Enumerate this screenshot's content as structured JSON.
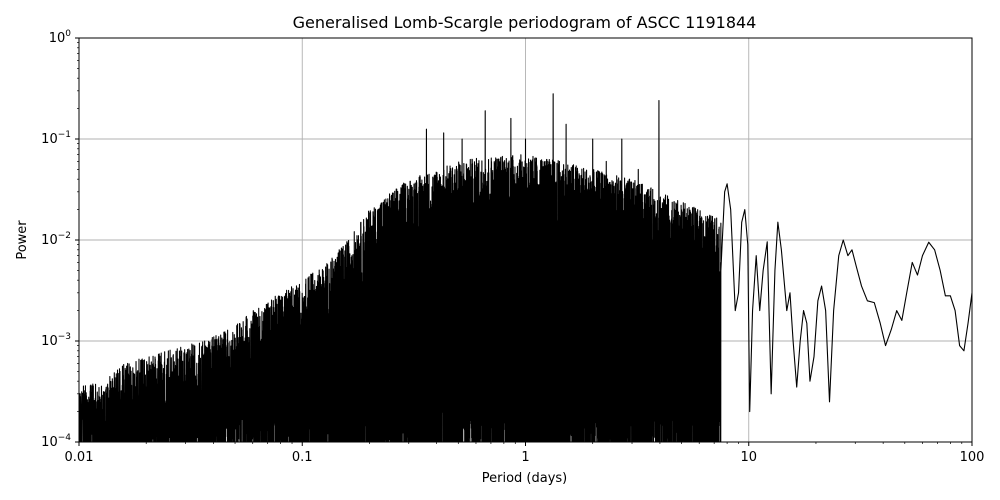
{
  "chart_data": {
    "type": "line",
    "title": "Generalised Lomb-Scargle periodogram of ASCC 1191844",
    "xlabel": "Period (days)",
    "ylabel": "Power",
    "xscale": "log",
    "yscale": "log",
    "xlim": [
      0.01,
      100
    ],
    "ylim": [
      0.0001,
      1
    ],
    "grid": true,
    "x_ticks": [
      {
        "value": 0.01,
        "label": "0.01"
      },
      {
        "value": 0.1,
        "label": "0.1"
      },
      {
        "value": 1,
        "label": "1"
      },
      {
        "value": 10,
        "label": "10"
      },
      {
        "value": 100,
        "label": "100"
      }
    ],
    "y_ticks": [
      {
        "value": 0.0001,
        "base": "10",
        "exp": "−4"
      },
      {
        "value": 0.001,
        "base": "10",
        "exp": "−3"
      },
      {
        "value": 0.01,
        "base": "10",
        "exp": "−2"
      },
      {
        "value": 0.1,
        "base": "10",
        "exp": "−1"
      },
      {
        "value": 1,
        "base": "10",
        "exp": "0"
      }
    ],
    "series": [
      {
        "color": "#000000",
        "envelope": [
          [
            0.01,
            0.00035
          ],
          [
            0.013,
            0.0004
          ],
          [
            0.016,
            0.0006
          ],
          [
            0.02,
            0.0007
          ],
          [
            0.025,
            0.0008
          ],
          [
            0.03,
            0.0009
          ],
          [
            0.04,
            0.0011
          ],
          [
            0.05,
            0.0014
          ],
          [
            0.06,
            0.002
          ],
          [
            0.08,
            0.003
          ],
          [
            0.1,
            0.004
          ],
          [
            0.13,
            0.006
          ],
          [
            0.16,
            0.01
          ],
          [
            0.2,
            0.02
          ],
          [
            0.25,
            0.03
          ],
          [
            0.3,
            0.04
          ],
          [
            0.4,
            0.05
          ],
          [
            0.5,
            0.06
          ],
          [
            0.6,
            0.065
          ],
          [
            0.8,
            0.07
          ],
          [
            1.0,
            0.07
          ],
          [
            1.5,
            0.06
          ],
          [
            2.0,
            0.05
          ],
          [
            3.0,
            0.04
          ],
          [
            4.0,
            0.03
          ],
          [
            6.0,
            0.02
          ],
          [
            8.0,
            0.015
          ]
        ],
        "peaks": [
          {
            "x": 0.36,
            "y": 0.125
          },
          {
            "x": 0.43,
            "y": 0.115
          },
          {
            "x": 0.52,
            "y": 0.1
          },
          {
            "x": 0.66,
            "y": 0.19
          },
          {
            "x": 0.86,
            "y": 0.16
          },
          {
            "x": 1.0,
            "y": 0.1
          },
          {
            "x": 1.33,
            "y": 0.28
          },
          {
            "x": 1.52,
            "y": 0.14
          },
          {
            "x": 2.0,
            "y": 0.1
          },
          {
            "x": 2.3,
            "y": 0.06
          },
          {
            "x": 2.7,
            "y": 0.1
          },
          {
            "x": 3.2,
            "y": 0.05
          },
          {
            "x": 3.96,
            "y": 0.24
          }
        ],
        "smooth": [
          [
            7.5,
            0.005
          ],
          [
            7.8,
            0.03
          ],
          [
            8.0,
            0.036
          ],
          [
            8.3,
            0.02
          ],
          [
            8.7,
            0.002
          ],
          [
            9.0,
            0.003
          ],
          [
            9.3,
            0.015
          ],
          [
            9.6,
            0.02
          ],
          [
            9.9,
            0.009
          ],
          [
            10.1,
            0.0002
          ],
          [
            10.4,
            0.002
          ],
          [
            10.8,
            0.007
          ],
          [
            11.2,
            0.002
          ],
          [
            11.6,
            0.005
          ],
          [
            12.1,
            0.0096
          ],
          [
            12.6,
            0.0003
          ],
          [
            13.1,
            0.005
          ],
          [
            13.5,
            0.015
          ],
          [
            14.0,
            0.008
          ],
          [
            14.8,
            0.002
          ],
          [
            15.3,
            0.003
          ],
          [
            15.8,
            0.001
          ],
          [
            16.4,
            0.00035
          ],
          [
            17.0,
            0.001
          ],
          [
            17.6,
            0.002
          ],
          [
            18.2,
            0.0015
          ],
          [
            18.8,
            0.0004
          ],
          [
            19.6,
            0.0007
          ],
          [
            20.4,
            0.0025
          ],
          [
            21.2,
            0.0035
          ],
          [
            22.1,
            0.002
          ],
          [
            23.0,
            0.00025
          ],
          [
            24.0,
            0.002
          ],
          [
            25.3,
            0.007
          ],
          [
            26.5,
            0.01
          ],
          [
            27.8,
            0.007
          ],
          [
            29.0,
            0.008
          ],
          [
            30.3,
            0.0055
          ],
          [
            32.0,
            0.0035
          ],
          [
            34.0,
            0.0025
          ],
          [
            36.5,
            0.0024
          ],
          [
            38.8,
            0.0015
          ],
          [
            41.0,
            0.0009
          ],
          [
            43.5,
            0.0013
          ],
          [
            46.0,
            0.002
          ],
          [
            48.5,
            0.0016
          ],
          [
            51.0,
            0.003
          ],
          [
            54.0,
            0.006
          ],
          [
            57.0,
            0.0045
          ],
          [
            60.0,
            0.007
          ],
          [
            64.0,
            0.0095
          ],
          [
            68.0,
            0.008
          ],
          [
            72.0,
            0.005
          ],
          [
            76.0,
            0.0028
          ],
          [
            80.0,
            0.0028
          ],
          [
            84.0,
            0.002
          ],
          [
            88.0,
            0.0009
          ],
          [
            92.0,
            0.0008
          ],
          [
            96.0,
            0.0015
          ],
          [
            100.0,
            0.003
          ]
        ]
      }
    ]
  }
}
